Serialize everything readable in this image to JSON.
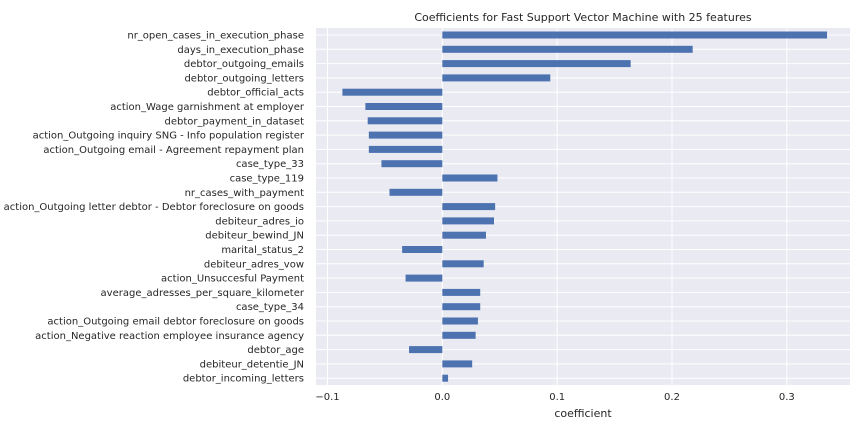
{
  "chart_data": {
    "type": "bar",
    "orientation": "horizontal",
    "title": "Coefficients for Fast Support Vector Machine with 25 features",
    "xlabel": "coefficient",
    "ylabel": "",
    "xlim": [
      -0.11,
      0.355
    ],
    "xticks": [
      -0.1,
      0.0,
      0.1,
      0.2,
      0.3
    ],
    "xtick_labels": [
      "−0.1",
      "0.0",
      "0.1",
      "0.2",
      "0.3"
    ],
    "grid": true,
    "bar_color": "#4c72b0",
    "background_color": "#eaeaf2",
    "categories": [
      "nr_open_cases_in_execution_phase",
      "days_in_execution_phase",
      "debtor_outgoing_emails",
      "debtor_outgoing_letters",
      "debtor_official_acts",
      "action_Wage garnishment at employer",
      "debtor_payment_in_dataset",
      "action_Outgoing inquiry SNG - Info population register",
      "action_Outgoing email - Agreement repayment plan",
      "case_type_33",
      "case_type_119",
      "nr_cases_with_payment",
      "action_Outgoing letter debtor - Debtor foreclosure on goods",
      "debiteur_adres_io",
      "debiteur_bewind_JN",
      "marital_status_2",
      "debiteur_adres_vow",
      "action_Unsuccesful Payment",
      "average_adresses_per_square_kilometer",
      "case_type_34",
      "action_Outgoing email debtor foreclosure on goods",
      "action_Negative reaction employee insurance agency",
      "debtor_age",
      "debiteur_detentie_JN",
      "debtor_incoming_letters"
    ],
    "values": [
      0.335,
      0.218,
      0.164,
      0.094,
      -0.087,
      -0.067,
      -0.065,
      -0.064,
      -0.064,
      -0.053,
      0.048,
      -0.046,
      0.046,
      0.045,
      0.038,
      -0.035,
      0.036,
      -0.032,
      0.033,
      0.033,
      0.031,
      0.029,
      -0.029,
      0.026,
      0.005
    ]
  }
}
